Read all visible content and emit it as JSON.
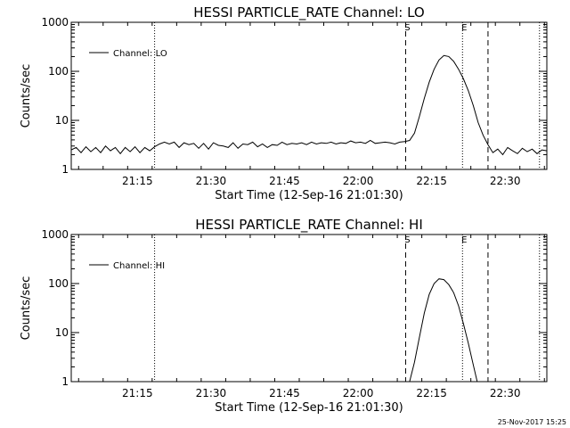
{
  "timestamp": "25-Nov-2017 15:25",
  "chart_data": [
    {
      "type": "line",
      "title": "HESSI PARTICLE_RATE Channel: LO",
      "xlabel": "Start Time (12-Sep-16 21:01:30)",
      "ylabel": "Counts/sec",
      "y_scale": "log",
      "ylim": [
        1,
        1000
      ],
      "y_ticks": [
        "1",
        "10",
        "100",
        "1000"
      ],
      "x_unit": "minutes after 21:01:30",
      "xlim": [
        0,
        97
      ],
      "x_ticks": [
        "21:15",
        "21:30",
        "21:45",
        "22:00",
        "22:15",
        "22:30"
      ],
      "legend": "top-left",
      "series": [
        {
          "name": "Channel: LO",
          "x": [
            0,
            1,
            2,
            3,
            4,
            5,
            6,
            7,
            8,
            9,
            10,
            11,
            12,
            13,
            14,
            15,
            16,
            17,
            18,
            19,
            20,
            21,
            22,
            23,
            24,
            25,
            26,
            27,
            28,
            29,
            30,
            31,
            32,
            33,
            34,
            35,
            36,
            37,
            38,
            39,
            40,
            41,
            42,
            43,
            44,
            45,
            46,
            47,
            48,
            49,
            50,
            51,
            52,
            53,
            54,
            55,
            56,
            57,
            58,
            59,
            60,
            61,
            62,
            63,
            64,
            65,
            66,
            67,
            68,
            69,
            70,
            71,
            72,
            73,
            74,
            75,
            76,
            77,
            78,
            79,
            80,
            81,
            82,
            83,
            84,
            85,
            86,
            87,
            88,
            89,
            90,
            91,
            92,
            93,
            94,
            95,
            96,
            97
          ],
          "values": [
            2.5,
            2.8,
            2.2,
            2.9,
            2.3,
            2.8,
            2.2,
            3.0,
            2.4,
            2.8,
            2.1,
            2.8,
            2.3,
            2.9,
            2.2,
            2.8,
            2.4,
            2.9,
            3.3,
            3.6,
            3.3,
            3.6,
            2.8,
            3.5,
            3.2,
            3.4,
            2.7,
            3.4,
            2.6,
            3.5,
            3.1,
            3.0,
            2.8,
            3.5,
            2.7,
            3.3,
            3.2,
            3.6,
            2.9,
            3.3,
            2.8,
            3.2,
            3.1,
            3.6,
            3.2,
            3.4,
            3.3,
            3.5,
            3.2,
            3.6,
            3.3,
            3.5,
            3.4,
            3.6,
            3.3,
            3.5,
            3.4,
            3.8,
            3.5,
            3.6,
            3.4,
            3.9,
            3.4,
            3.5,
            3.6,
            3.5,
            3.3,
            3.6,
            3.7,
            3.9,
            5.5,
            12,
            28,
            60,
            110,
            170,
            210,
            200,
            160,
            110,
            70,
            40,
            20,
            9,
            5,
            3.2,
            2.2,
            2.6,
            2.0,
            2.8,
            2.4,
            2.1,
            2.7,
            2.3,
            2.6,
            2.1,
            2.5,
            2.4
          ]
        }
      ],
      "markers": [
        {
          "x": 68.2,
          "style": "dashed",
          "label": "S"
        },
        {
          "x": 79.8,
          "style": "dotted",
          "label": "E"
        },
        {
          "x": 85.0,
          "style": "dashed",
          "label": ""
        },
        {
          "x": 17.0,
          "style": "dotted",
          "label": ""
        },
        {
          "x": 95.5,
          "style": "dotted",
          "label": ""
        }
      ]
    },
    {
      "type": "line",
      "title": "HESSI PARTICLE_RATE Channel: HI",
      "xlabel": "Start Time (12-Sep-16 21:01:30)",
      "ylabel": "Counts/sec",
      "y_scale": "log",
      "ylim": [
        1,
        1000
      ],
      "y_ticks": [
        "1",
        "10",
        "100",
        "1000"
      ],
      "x_unit": "minutes after 21:01:30",
      "xlim": [
        0,
        97
      ],
      "x_ticks": [
        "21:15",
        "21:30",
        "21:45",
        "22:00",
        "22:15",
        "22:30"
      ],
      "legend": "top-left",
      "series": [
        {
          "name": "Channel: HI",
          "x": [
            69.0,
            70,
            71,
            72,
            73,
            74,
            75,
            76,
            77,
            78,
            79,
            80,
            81,
            82,
            82.8
          ],
          "values": [
            1.0,
            2.5,
            8,
            25,
            60,
            100,
            125,
            120,
            95,
            65,
            35,
            15,
            6,
            2.2,
            1.0
          ]
        }
      ],
      "markers": [
        {
          "x": 68.2,
          "style": "dashed",
          "label": "S"
        },
        {
          "x": 79.8,
          "style": "dotted",
          "label": "E"
        },
        {
          "x": 85.0,
          "style": "dashed",
          "label": ""
        },
        {
          "x": 17.0,
          "style": "dotted",
          "label": ""
        },
        {
          "x": 95.5,
          "style": "dotted",
          "label": ""
        }
      ]
    }
  ]
}
